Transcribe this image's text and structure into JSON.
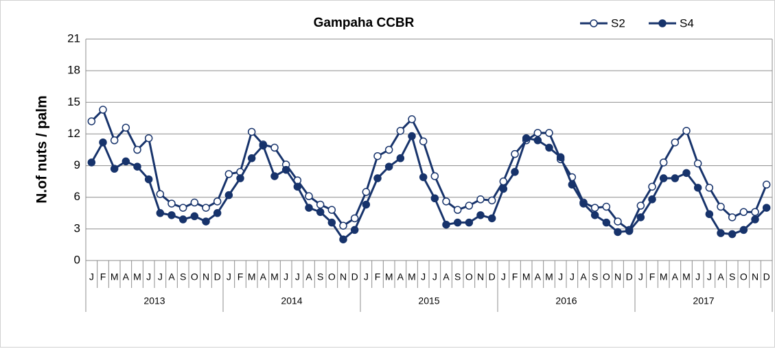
{
  "chart_data": {
    "type": "line",
    "title": "Gampaha CCBR",
    "y_label": "N.of nuts / palm",
    "categories": [
      "J",
      "F",
      "M",
      "A",
      "M",
      "J",
      "J",
      "A",
      "S",
      "O",
      "N",
      "D",
      "J",
      "F",
      "M",
      "A",
      "M",
      "J",
      "J",
      "A",
      "S",
      "O",
      "N",
      "D",
      "J",
      "F",
      "M",
      "A",
      "M",
      "J",
      "J",
      "A",
      "S",
      "O",
      "N",
      "D",
      "J",
      "F",
      "M",
      "A",
      "M",
      "J",
      "J",
      "A",
      "S",
      "O",
      "N",
      "D",
      "J",
      "F",
      "M",
      "A",
      "M",
      "J",
      "J",
      "A",
      "S",
      "O",
      "N",
      "D"
    ],
    "years": [
      "2013",
      "2014",
      "2015",
      "2016",
      "2017"
    ],
    "series": [
      {
        "name": "S2",
        "color": "#17336b",
        "marker": "open",
        "values": [
          13.2,
          14.3,
          11.4,
          12.6,
          10.5,
          11.6,
          6.3,
          5.4,
          5.0,
          5.5,
          5.0,
          5.6,
          8.2,
          8.4,
          12.2,
          11.0,
          10.7,
          9.1,
          7.6,
          6.1,
          5.3,
          4.8,
          3.3,
          4.0,
          6.5,
          9.9,
          10.5,
          12.3,
          13.4,
          11.3,
          8.0,
          5.6,
          4.8,
          5.2,
          5.8,
          5.7,
          7.5,
          10.1,
          11.4,
          12.1,
          12.1,
          9.6,
          7.9,
          5.5,
          5.0,
          5.1,
          3.7,
          2.9,
          5.2,
          7.0,
          9.3,
          11.2,
          12.3,
          9.2,
          6.9,
          5.1,
          4.1,
          4.6,
          4.6,
          7.2
        ]
      },
      {
        "name": "S4",
        "color": "#17336b",
        "marker": "filled",
        "values": [
          9.3,
          11.2,
          8.7,
          9.4,
          8.9,
          7.7,
          4.5,
          4.3,
          3.9,
          4.2,
          3.7,
          4.5,
          6.2,
          7.8,
          9.7,
          10.9,
          8.0,
          8.6,
          7.0,
          5.0,
          4.6,
          3.6,
          2.0,
          2.9,
          5.3,
          7.8,
          8.9,
          9.7,
          11.8,
          7.9,
          5.9,
          3.4,
          3.6,
          3.6,
          4.3,
          4.0,
          6.8,
          8.4,
          11.6,
          11.4,
          10.7,
          9.8,
          7.2,
          5.4,
          4.3,
          3.6,
          2.7,
          2.8,
          4.1,
          5.8,
          7.8,
          7.8,
          8.3,
          6.9,
          4.4,
          2.6,
          2.5,
          2.9,
          3.9,
          5.0
        ]
      }
    ],
    "ylim": [
      0,
      21
    ],
    "yticks": [
      0,
      3,
      6,
      9,
      12,
      15,
      18,
      21
    ],
    "grid": true
  }
}
